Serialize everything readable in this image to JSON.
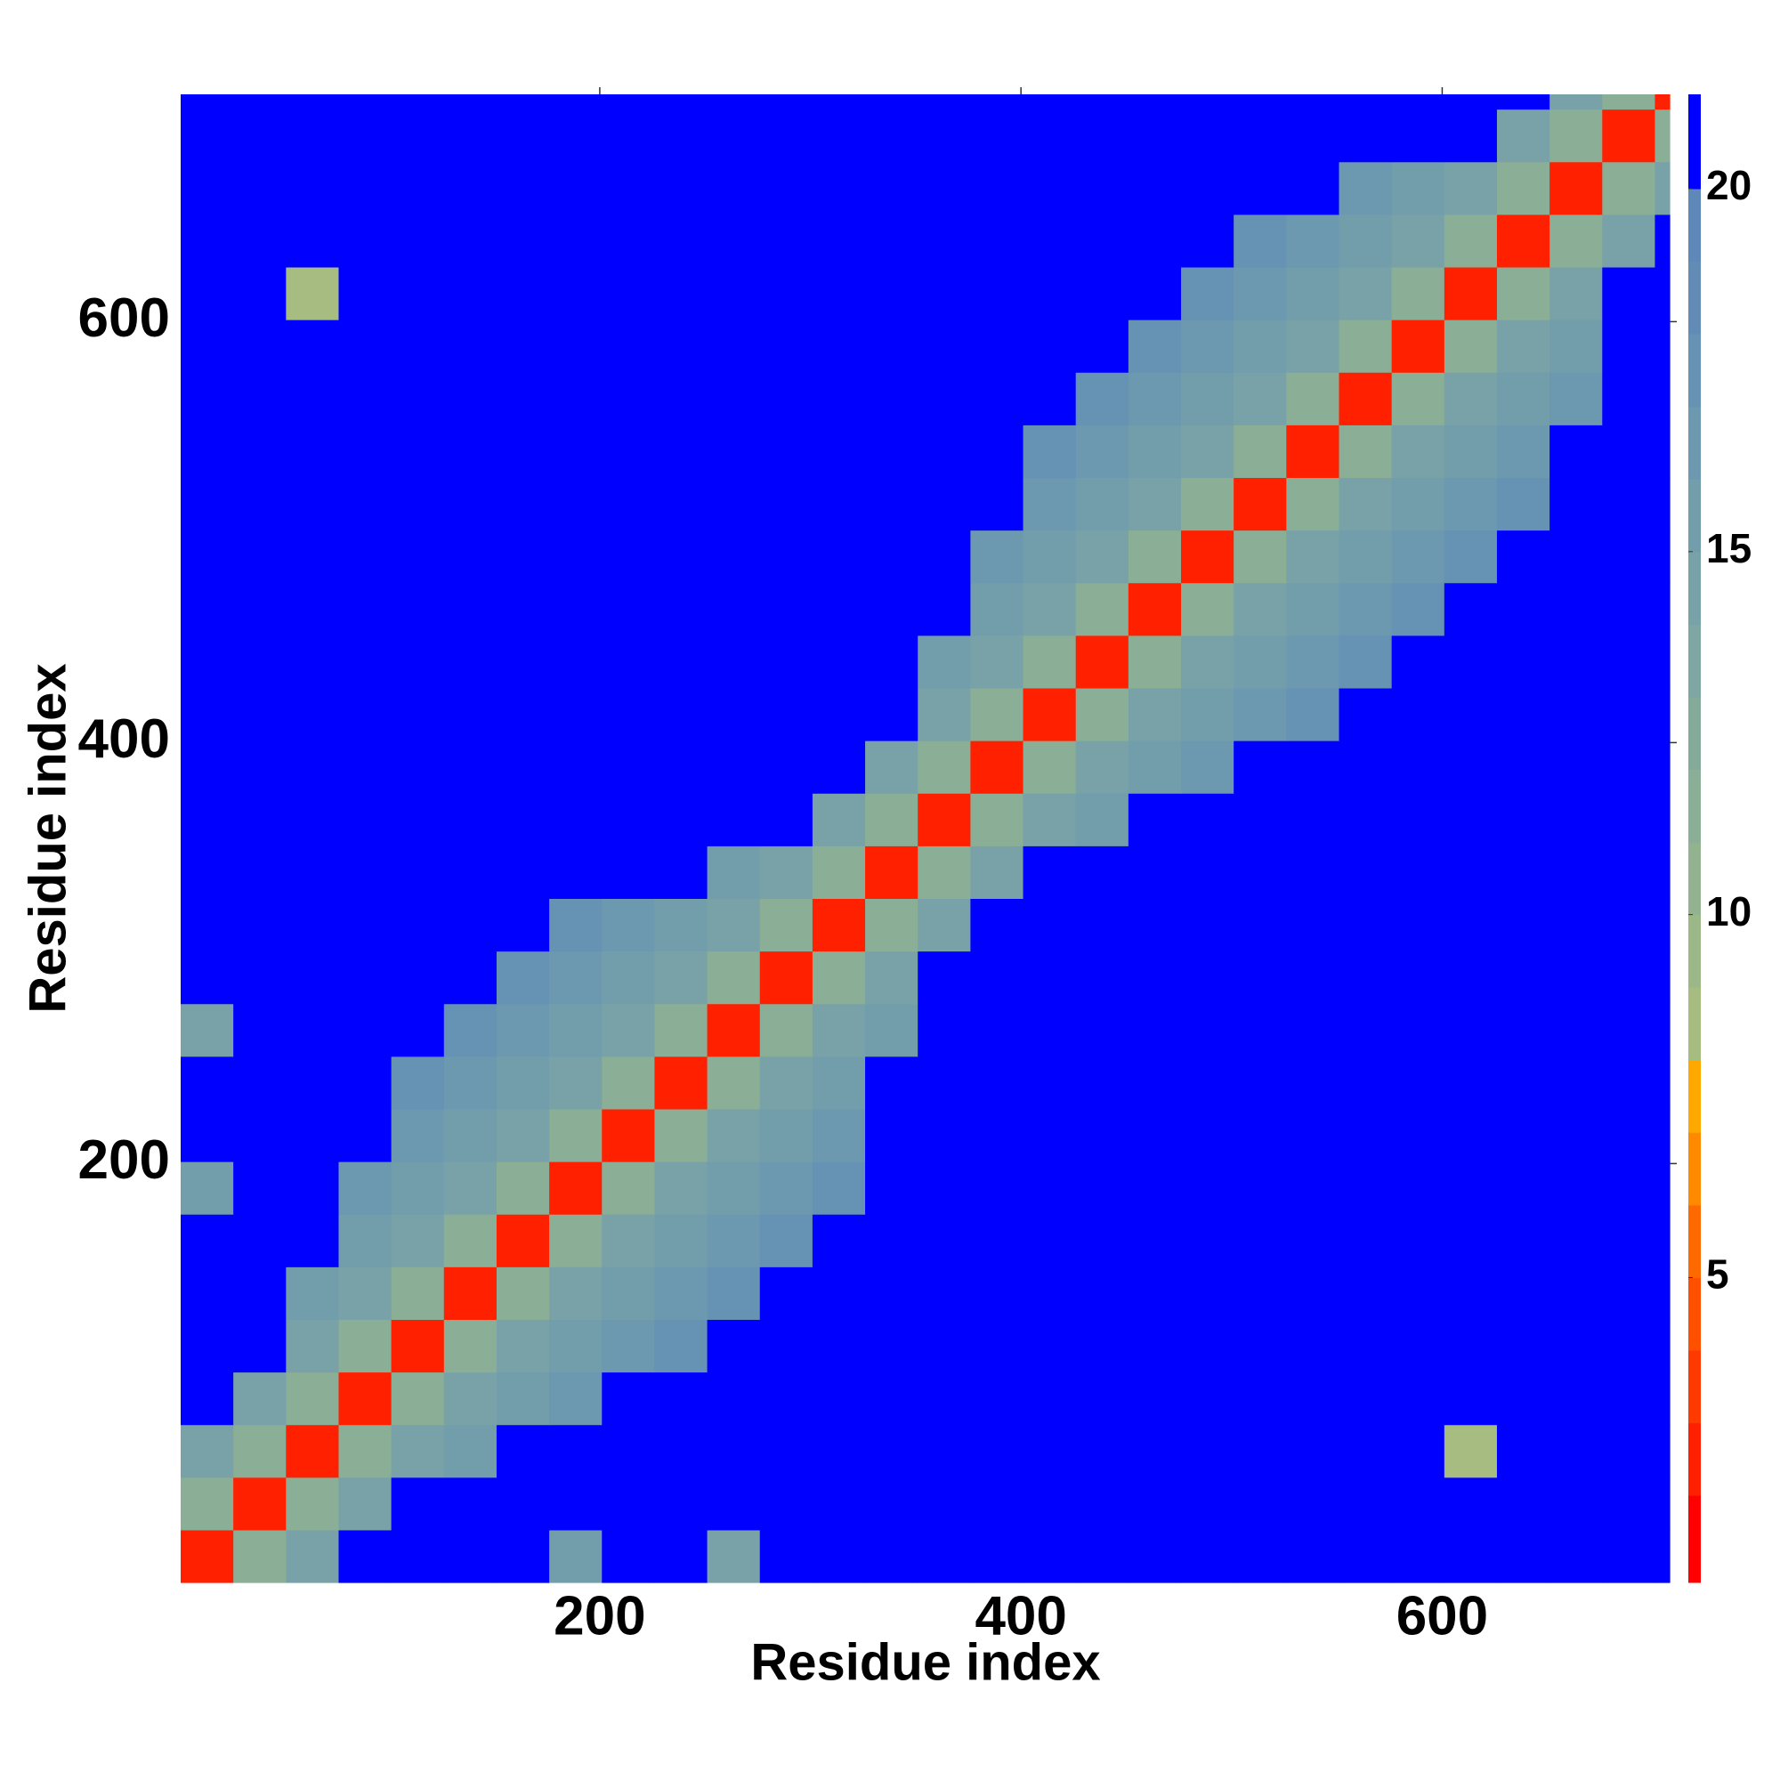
{
  "chart_data": {
    "type": "heatmap",
    "x_label": "Residue index",
    "y_label": "Residue index",
    "xlim": [
      1,
      708
    ],
    "ylim": [
      1,
      708
    ],
    "xticks": [
      200,
      400,
      600
    ],
    "yticks": [
      200,
      400,
      600
    ],
    "xbins": [
      1,
      26,
      51,
      76,
      101,
      126,
      151,
      176,
      201,
      226,
      251,
      276,
      301,
      326,
      351,
      376,
      401,
      426,
      451,
      476,
      501,
      526,
      551,
      576,
      601,
      626,
      651,
      676,
      701,
      708
    ],
    "ybins": [
      1,
      26,
      51,
      76,
      101,
      126,
      151,
      176,
      201,
      226,
      251,
      276,
      301,
      326,
      351,
      376,
      401,
      426,
      451,
      476,
      501,
      526,
      551,
      576,
      601,
      626,
      651,
      676,
      701,
      708
    ],
    "clim": [
      0.8,
      21.3
    ],
    "cticks": [
      5,
      10,
      15,
      20
    ],
    "colorscale": [
      [
        2,
        "#ff0000"
      ],
      [
        3,
        "#ff2000"
      ],
      [
        4,
        "#ff3a00"
      ],
      [
        5,
        "#ff5000"
      ],
      [
        6,
        "#ff6a00"
      ],
      [
        7,
        "#ff8a00"
      ],
      [
        8,
        "#ffa800"
      ],
      [
        9,
        "#a6bc80"
      ],
      [
        10,
        "#9cb888"
      ],
      [
        11,
        "#92b290"
      ],
      [
        12,
        "#8aae96"
      ],
      [
        13,
        "#84aa9c"
      ],
      [
        14,
        "#7ea6a2"
      ],
      [
        15,
        "#78a2a8"
      ],
      [
        16,
        "#729eac"
      ],
      [
        17,
        "#6c98b0"
      ],
      [
        18,
        "#6692b4"
      ],
      [
        19,
        "#628cb6"
      ],
      [
        20,
        "#5e88b8"
      ],
      [
        21.3,
        "#0000ff"
      ]
    ],
    "z": [
      [
        3,
        12,
        15,
        21,
        21,
        21,
        21,
        16,
        21,
        21,
        15,
        21,
        21,
        21,
        21,
        21,
        21,
        21,
        21,
        21,
        21,
        21,
        21,
        21,
        21,
        21,
        21,
        21,
        21
      ],
      [
        12,
        3,
        12,
        15,
        21,
        21,
        21,
        21,
        21,
        21,
        21,
        21,
        21,
        21,
        21,
        21,
        21,
        21,
        21,
        21,
        21,
        21,
        21,
        21,
        21,
        21,
        21,
        21,
        21
      ],
      [
        15,
        12,
        3,
        12,
        15,
        16,
        21,
        21,
        21,
        21,
        21,
        21,
        21,
        21,
        21,
        21,
        21,
        21,
        21,
        21,
        21,
        21,
        21,
        21,
        9,
        21,
        21,
        21,
        21
      ],
      [
        21,
        15,
        12,
        3,
        12,
        15,
        16,
        17,
        21,
        21,
        21,
        21,
        21,
        21,
        21,
        21,
        21,
        21,
        21,
        21,
        21,
        21,
        21,
        21,
        21,
        21,
        21,
        21,
        21
      ],
      [
        21,
        21,
        15,
        12,
        3,
        12,
        15,
        16,
        17,
        18,
        21,
        21,
        21,
        21,
        21,
        21,
        21,
        21,
        21,
        21,
        21,
        21,
        21,
        21,
        21,
        21,
        21,
        21,
        21
      ],
      [
        21,
        21,
        16,
        15,
        12,
        3,
        12,
        15,
        16,
        17,
        18,
        21,
        21,
        21,
        21,
        21,
        21,
        21,
        21,
        21,
        21,
        21,
        21,
        21,
        21,
        21,
        21,
        21,
        21
      ],
      [
        21,
        21,
        21,
        16,
        15,
        12,
        3,
        12,
        15,
        16,
        17,
        18,
        21,
        21,
        21,
        21,
        21,
        21,
        21,
        21,
        21,
        21,
        21,
        21,
        21,
        21,
        21,
        21,
        21
      ],
      [
        16,
        21,
        21,
        17,
        16,
        15,
        12,
        3,
        12,
        15,
        16,
        17,
        18,
        21,
        21,
        21,
        21,
        21,
        21,
        21,
        21,
        21,
        21,
        21,
        21,
        21,
        21,
        21,
        21
      ],
      [
        21,
        21,
        21,
        21,
        17,
        16,
        15,
        12,
        3,
        12,
        15,
        16,
        17,
        21,
        21,
        21,
        21,
        21,
        21,
        21,
        21,
        21,
        21,
        21,
        21,
        21,
        21,
        21,
        21
      ],
      [
        21,
        21,
        21,
        21,
        18,
        17,
        16,
        15,
        12,
        3,
        12,
        15,
        16,
        21,
        21,
        21,
        21,
        21,
        21,
        21,
        21,
        21,
        21,
        21,
        21,
        21,
        21,
        21,
        21
      ],
      [
        15,
        21,
        21,
        21,
        21,
        18,
        17,
        16,
        15,
        12,
        3,
        12,
        15,
        16,
        21,
        21,
        21,
        21,
        21,
        21,
        21,
        21,
        21,
        21,
        21,
        21,
        21,
        21,
        21
      ],
      [
        21,
        21,
        21,
        21,
        21,
        21,
        18,
        17,
        16,
        15,
        12,
        3,
        12,
        15,
        21,
        21,
        21,
        21,
        21,
        21,
        21,
        21,
        21,
        21,
        21,
        21,
        21,
        21,
        21
      ],
      [
        21,
        21,
        21,
        21,
        21,
        21,
        21,
        18,
        17,
        16,
        15,
        12,
        3,
        12,
        15,
        21,
        21,
        21,
        21,
        21,
        21,
        21,
        21,
        21,
        21,
        21,
        21,
        21,
        21
      ],
      [
        21,
        21,
        21,
        21,
        21,
        21,
        21,
        21,
        21,
        21,
        16,
        15,
        12,
        3,
        12,
        15,
        21,
        21,
        21,
        21,
        21,
        21,
        21,
        21,
        21,
        21,
        21,
        21,
        21
      ],
      [
        21,
        21,
        21,
        21,
        21,
        21,
        21,
        21,
        21,
        21,
        21,
        21,
        15,
        12,
        3,
        12,
        15,
        16,
        21,
        21,
        21,
        21,
        21,
        21,
        21,
        21,
        21,
        21,
        21
      ],
      [
        21,
        21,
        21,
        21,
        21,
        21,
        21,
        21,
        21,
        21,
        21,
        21,
        21,
        15,
        12,
        3,
        12,
        15,
        16,
        17,
        21,
        21,
        21,
        21,
        21,
        21,
        21,
        21,
        21
      ],
      [
        21,
        21,
        21,
        21,
        21,
        21,
        21,
        21,
        21,
        21,
        21,
        21,
        21,
        21,
        15,
        12,
        3,
        12,
        15,
        16,
        17,
        18,
        21,
        21,
        21,
        21,
        21,
        21,
        21
      ],
      [
        21,
        21,
        21,
        21,
        21,
        21,
        21,
        21,
        21,
        21,
        21,
        21,
        21,
        21,
        16,
        15,
        12,
        3,
        12,
        15,
        16,
        17,
        18,
        21,
        21,
        21,
        21,
        21,
        21
      ],
      [
        21,
        21,
        21,
        21,
        21,
        21,
        21,
        21,
        21,
        21,
        21,
        21,
        21,
        21,
        21,
        16,
        15,
        12,
        3,
        12,
        15,
        16,
        17,
        18,
        21,
        21,
        21,
        21,
        21
      ],
      [
        21,
        21,
        21,
        21,
        21,
        21,
        21,
        21,
        21,
        21,
        21,
        21,
        21,
        21,
        21,
        17,
        16,
        15,
        12,
        3,
        12,
        15,
        16,
        17,
        18,
        21,
        21,
        21,
        21
      ],
      [
        21,
        21,
        21,
        21,
        21,
        21,
        21,
        21,
        21,
        21,
        21,
        21,
        21,
        21,
        21,
        21,
        17,
        16,
        15,
        12,
        3,
        12,
        15,
        16,
        17,
        18,
        21,
        21,
        21
      ],
      [
        21,
        21,
        21,
        21,
        21,
        21,
        21,
        21,
        21,
        21,
        21,
        21,
        21,
        21,
        21,
        21,
        18,
        17,
        16,
        15,
        12,
        3,
        12,
        15,
        16,
        17,
        21,
        21,
        21
      ],
      [
        21,
        21,
        21,
        21,
        21,
        21,
        21,
        21,
        21,
        21,
        21,
        21,
        21,
        21,
        21,
        21,
        21,
        18,
        17,
        16,
        15,
        12,
        3,
        12,
        15,
        16,
        17,
        21,
        21
      ],
      [
        21,
        21,
        21,
        21,
        21,
        21,
        21,
        21,
        21,
        21,
        21,
        21,
        21,
        21,
        21,
        21,
        21,
        21,
        18,
        17,
        16,
        15,
        12,
        3,
        12,
        15,
        16,
        21,
        21
      ],
      [
        21,
        21,
        9,
        21,
        21,
        21,
        21,
        21,
        21,
        21,
        21,
        21,
        21,
        21,
        21,
        21,
        21,
        21,
        21,
        18,
        17,
        16,
        15,
        12,
        3,
        12,
        15,
        21,
        21
      ],
      [
        21,
        21,
        21,
        21,
        21,
        21,
        21,
        21,
        21,
        21,
        21,
        21,
        21,
        21,
        21,
        21,
        21,
        21,
        21,
        21,
        18,
        17,
        16,
        15,
        12,
        3,
        12,
        15,
        21
      ],
      [
        21,
        21,
        21,
        21,
        21,
        21,
        21,
        21,
        21,
        21,
        21,
        21,
        21,
        21,
        21,
        21,
        21,
        21,
        21,
        21,
        21,
        21,
        17,
        16,
        15,
        12,
        3,
        12,
        15
      ],
      [
        21,
        21,
        21,
        21,
        21,
        21,
        21,
        21,
        21,
        21,
        21,
        21,
        21,
        21,
        21,
        21,
        21,
        21,
        21,
        21,
        21,
        21,
        21,
        21,
        21,
        15,
        12,
        3,
        12
      ],
      [
        21,
        21,
        21,
        21,
        21,
        21,
        21,
        21,
        21,
        21,
        21,
        21,
        21,
        21,
        21,
        21,
        21,
        21,
        21,
        21,
        21,
        21,
        21,
        21,
        21,
        21,
        15,
        12,
        3
      ]
    ]
  }
}
